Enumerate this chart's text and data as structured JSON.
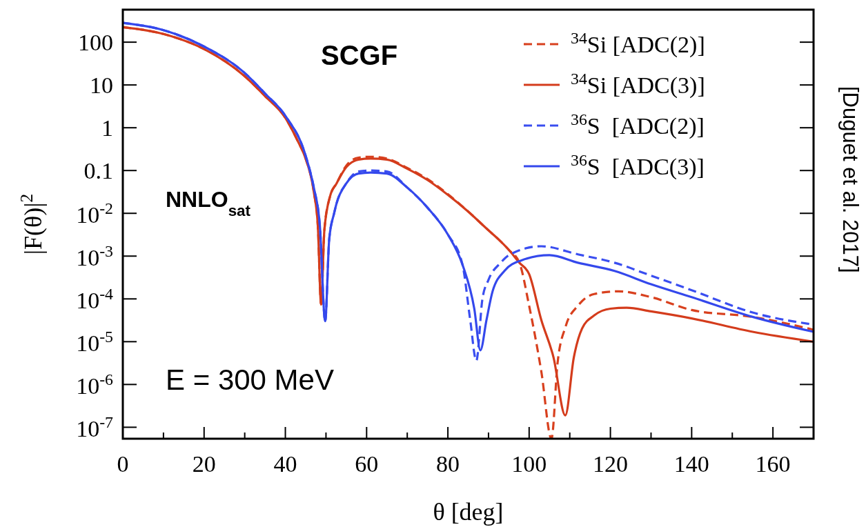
{
  "chart_data": {
    "type": "line",
    "xlabel": "θ [deg]",
    "ylabel": "|F(θ)|$^{2}$",
    "log": "y",
    "grid": false,
    "legend": "top right",
    "marker": "none",
    "xlim": [
      0,
      170
    ],
    "xticks": [
      0,
      {
        "value": 10,
        "label": null
      },
      20,
      {
        "value": 30,
        "label": null
      },
      40,
      {
        "value": 50,
        "label": null
      },
      60,
      {
        "value": 70,
        "label": null
      },
      80,
      {
        "value": 90,
        "label": null
      },
      100,
      {
        "value": 110,
        "label": null
      },
      120,
      {
        "value": 130,
        "label": null
      },
      140,
      {
        "value": 150,
        "label": null
      },
      160
    ],
    "ylim": [
      5.4e-08,
      575
    ],
    "yticks": [
      {
        "value": 1e-07,
        "label": "10$^{-7}$"
      },
      {
        "value": 1e-06,
        "label": "10$^{-6}$"
      },
      {
        "value": 1e-05,
        "label": "10$^{-5}$"
      },
      {
        "value": 0.0001,
        "label": "10$^{-4}$"
      },
      {
        "value": 0.001,
        "label": "10$^{-3}$"
      },
      {
        "value": 0.01,
        "label": "10$^{-2}$"
      },
      0.1,
      1,
      10,
      100
    ],
    "annotations": [
      "SCGF",
      "NNLO$_{sat}$",
      "E = 300 MeV",
      "[Duguet et al. 2017]"
    ],
    "series": [
      {
        "name": "$^{34}$Si [ADC(2)]",
        "color": "#d8401e",
        "line_style": "dashed",
        "x": [
          0,
          10,
          20,
          30,
          35,
          40,
          43,
          45,
          47,
          48,
          48.8,
          49.6,
          51,
          52.6,
          55,
          58,
          61,
          65,
          70,
          75,
          80,
          85,
          90,
          92.4,
          95,
          97.6,
          100,
          103,
          105.5,
          107,
          109,
          112,
          116,
          122,
          130,
          140,
          155,
          170
        ],
        "values": [
          224,
          155,
          69,
          16,
          5.5,
          1.7,
          0.5,
          0.19,
          0.032,
          0.005,
          7.4e-05,
          0.004,
          0.025,
          0.05,
          0.13,
          0.2,
          0.21,
          0.19,
          0.115,
          0.063,
          0.028,
          0.011,
          0.004,
          0.0025,
          0.0014,
          0.0007,
          6.9e-05,
          2e-06,
          5.4e-08,
          3.2e-06,
          2.3e-05,
          6.9e-05,
          0.00013,
          0.00015,
          0.00011,
          5.5e-05,
          3.8e-05,
          1.9e-05
        ]
      },
      {
        "name": "$^{34}$Si [ADC(3)]",
        "color": "#d43c1c",
        "line_style": "solid",
        "x": [
          0,
          10,
          20,
          30,
          35,
          40,
          43,
          45,
          47,
          48,
          48.8,
          49.6,
          51,
          52.6,
          55,
          58,
          61,
          65,
          70,
          75,
          80,
          85,
          90,
          92.4,
          95,
          97.6,
          100,
          103,
          106,
          108.9,
          111,
          113,
          116,
          120,
          124,
          130,
          140,
          155,
          170
        ],
        "values": [
          224,
          155,
          69,
          16,
          5.5,
          1.7,
          0.5,
          0.19,
          0.032,
          0.005,
          7.4e-05,
          0.004,
          0.025,
          0.05,
          0.12,
          0.18,
          0.19,
          0.18,
          0.11,
          0.06,
          0.027,
          0.011,
          0.004,
          0.0025,
          0.0014,
          0.0007,
          0.00038,
          3.2e-05,
          4.3e-06,
          1.9e-07,
          4.3e-06,
          2e-05,
          4.1e-05,
          5.9e-05,
          6.2e-05,
          5.1e-05,
          3.5e-05,
          1.7e-05,
          1e-05
        ]
      },
      {
        "name": "$^{36}$S  [ADC(2)]",
        "color": "#3a4ef0",
        "line_style": "dashed",
        "x": [
          0,
          10,
          20,
          30,
          35,
          40,
          45,
          47,
          48.5,
          49.8,
          50.8,
          52,
          52.6,
          55,
          58,
          61,
          65,
          70,
          75,
          80,
          83.6,
          85.5,
          87,
          88.5,
          90,
          93,
          95,
          103,
          112,
          121,
          130,
          140,
          155,
          170
        ],
        "values": [
          282,
          191,
          79,
          19,
          6.3,
          1.9,
          0.22,
          0.04,
          0.005,
          3e-05,
          0.0025,
          0.01,
          0.017,
          0.05,
          0.095,
          0.1,
          0.095,
          0.04,
          0.0135,
          0.0032,
          0.00063,
          3.2e-05,
          3.6e-06,
          0.0001,
          0.00028,
          0.0007,
          0.00105,
          0.0017,
          0.0011,
          0.0007,
          0.00035,
          0.00016,
          4.8e-05,
          2.5e-05
        ]
      },
      {
        "name": "$^{36}$S  [ADC(3)]",
        "color": "#3448ec",
        "line_style": "solid",
        "x": [
          0,
          10,
          20,
          30,
          35,
          40,
          45,
          47,
          48.5,
          49.8,
          50.8,
          52,
          52.6,
          55,
          58,
          61,
          65,
          70,
          75,
          80,
          83.6,
          86.5,
          88,
          89.5,
          91,
          94,
          98,
          105,
          112,
          121,
          130,
          140,
          155,
          170
        ],
        "values": [
          282,
          191,
          79,
          19,
          6.3,
          1.9,
          0.22,
          0.04,
          0.005,
          3e-05,
          0.0025,
          0.01,
          0.017,
          0.05,
          0.085,
          0.09,
          0.085,
          0.04,
          0.0135,
          0.0032,
          0.00063,
          5.9e-05,
          6.3e-06,
          3.2e-05,
          0.00015,
          0.00046,
          0.00079,
          0.00105,
          0.0007,
          0.00045,
          0.00022,
          0.00011,
          3.8e-05,
          1.7e-05
        ]
      }
    ]
  }
}
